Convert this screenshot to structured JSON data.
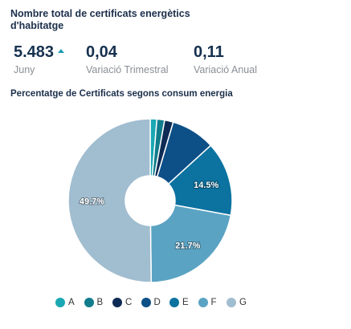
{
  "header": {
    "title": "Nombre total de certificats energètics d'habitatge"
  },
  "kpis": [
    {
      "value": "5.483",
      "label": "Juny",
      "trend": "up"
    },
    {
      "value": "0,04",
      "label": "Variació Trimestral"
    },
    {
      "value": "0,11",
      "label": "Variació Anual"
    }
  ],
  "colors": {
    "accent": "#1f9db3"
  },
  "chart_data": {
    "type": "pie",
    "title": "Percentatge de Certificats segons consum energia",
    "donut": true,
    "legend_position": "bottom",
    "categories": [
      "A",
      "B",
      "C",
      "D",
      "E",
      "F",
      "G"
    ],
    "values": [
      1.3,
      1.5,
      1.7,
      8.6,
      14.5,
      21.7,
      49.7
    ],
    "data_labels": [
      "",
      "",
      "",
      "",
      "14.5%",
      "21.7%",
      "49.7%"
    ],
    "colors": [
      "#1aa8b3",
      "#117c8c",
      "#0d2b55",
      "#0d4f87",
      "#0c72a0",
      "#5aa3c3",
      "#a1bdd0"
    ]
  }
}
